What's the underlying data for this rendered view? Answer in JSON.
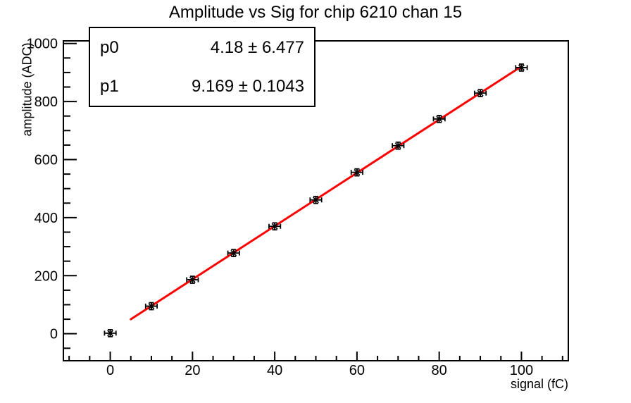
{
  "title": "Amplitude vs Sig for chip 6210 chan 15",
  "stats_box": {
    "rows": [
      {
        "name": "p0",
        "value": "4.18 ± 6.477"
      },
      {
        "name": "p1",
        "value": "9.169 ± 0.1043"
      }
    ]
  },
  "chart_data": {
    "type": "scatter",
    "title": "Amplitude vs Sig for chip 6210 chan 15",
    "xlabel": "signal (fC)",
    "ylabel": "amplitude (ADC)",
    "xlim": [
      -11.4,
      111.4
    ],
    "ylim": [
      -93,
      1009
    ],
    "grid": false,
    "x_major_ticks": [
      0,
      20,
      40,
      60,
      80,
      100
    ],
    "x_minor_step": 5,
    "y_major_ticks": [
      0,
      200,
      400,
      600,
      800,
      1000
    ],
    "y_minor_step": 50,
    "points": {
      "x": [
        0,
        10,
        20,
        30,
        40,
        50,
        60,
        70,
        80,
        90,
        100
      ],
      "y": [
        2,
        95,
        186,
        278,
        370,
        461,
        556,
        648,
        740,
        829,
        917
      ],
      "x_error": 1.4,
      "y_error": 12
    },
    "fit": {
      "type": "linear",
      "p0": 4.18,
      "p0_error": 6.477,
      "p1": 9.169,
      "p1_error": 0.1043,
      "range": [
        5,
        100
      ],
      "color": "#ff0000"
    },
    "marker": {
      "style": "asterisk",
      "color": "#000000"
    },
    "axis_color": "#000000"
  }
}
